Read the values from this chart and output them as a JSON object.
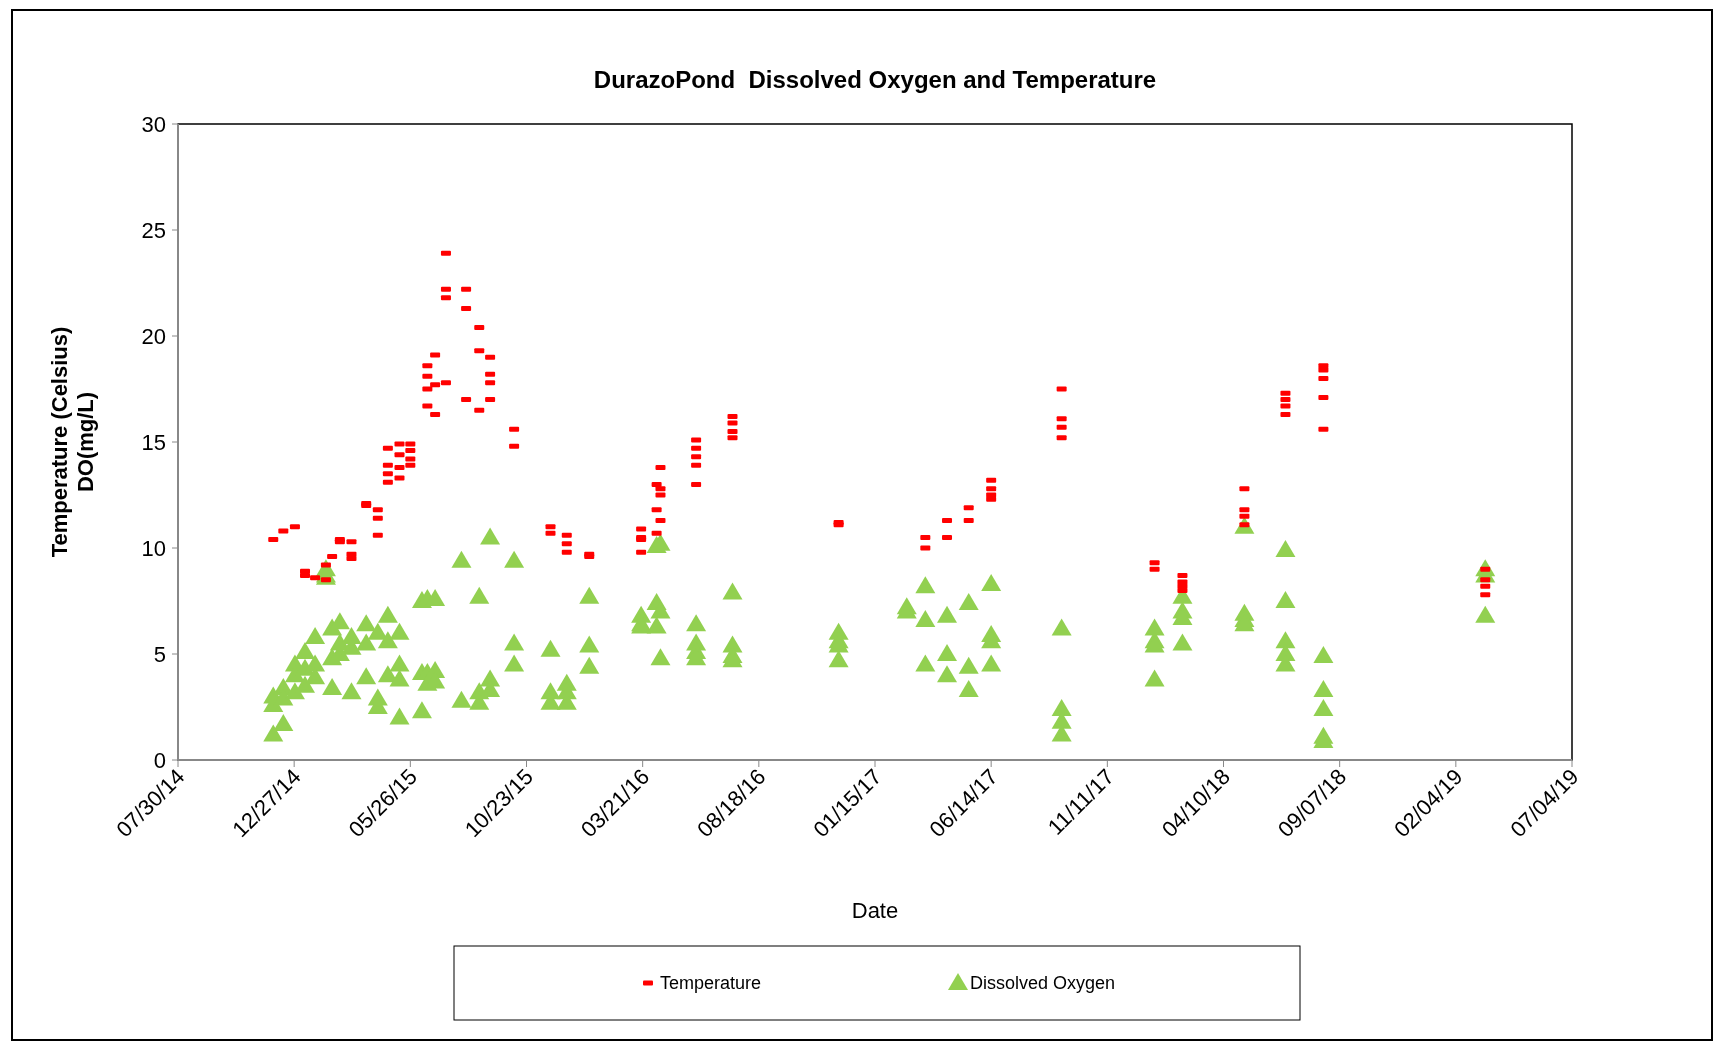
{
  "chart_data": {
    "type": "scatter",
    "title": "DurazoPond  Dissolved Oxygen and Temperature",
    "xlabel": "Date",
    "ylabel": "Temperature (Celsius)\nDO(mg/L)",
    "xlim": [
      "2014-07-30",
      "2019-07-04"
    ],
    "xticks": [
      {
        "value": "2014-07-30",
        "label": "07/30/14"
      },
      {
        "value": "2014-12-27",
        "label": "12/27/14"
      },
      {
        "value": "2015-05-26",
        "label": "05/26/15"
      },
      {
        "value": "2015-10-23",
        "label": "10/23/15"
      },
      {
        "value": "2016-03-21",
        "label": "03/21/16"
      },
      {
        "value": "2016-08-18",
        "label": "08/18/16"
      },
      {
        "value": "2017-01-15",
        "label": "01/15/17"
      },
      {
        "value": "2017-06-14",
        "label": "06/14/17"
      },
      {
        "value": "2017-11-11",
        "label": "11/11/17"
      },
      {
        "value": "2018-04-10",
        "label": "04/10/18"
      },
      {
        "value": "2018-09-07",
        "label": "09/07/18"
      },
      {
        "value": "2019-02-04",
        "label": "02/04/19"
      },
      {
        "value": "2019-07-04",
        "label": "07/04/19"
      }
    ],
    "ylim": [
      0,
      30
    ],
    "yticks": [
      0,
      5,
      10,
      15,
      20,
      25,
      30
    ],
    "grid": false,
    "legend": "bottom",
    "series": [
      {
        "name": "Temperature",
        "color": "#ff0000",
        "marker": "square",
        "x": [
          "2014-11-30",
          "2014-12-13",
          "2014-12-28",
          "2015-01-10",
          "2015-01-10",
          "2015-01-23",
          "2015-02-06",
          "2015-02-06",
          "2015-02-14",
          "2015-02-24",
          "2015-02-24",
          "2015-03-11",
          "2015-03-11",
          "2015-03-11",
          "2015-03-30",
          "2015-03-30",
          "2015-04-14",
          "2015-04-14",
          "2015-04-14",
          "2015-04-27",
          "2015-04-27",
          "2015-04-27",
          "2015-04-27",
          "2015-05-12",
          "2015-05-12",
          "2015-05-12",
          "2015-05-12",
          "2015-05-26",
          "2015-05-26",
          "2015-05-26",
          "2015-05-26",
          "2015-06-17",
          "2015-06-17",
          "2015-06-17",
          "2015-06-17",
          "2015-06-27",
          "2015-06-27",
          "2015-06-27",
          "2015-07-11",
          "2015-07-11",
          "2015-07-11",
          "2015-07-11",
          "2015-08-06",
          "2015-08-06",
          "2015-08-06",
          "2015-08-23",
          "2015-08-23",
          "2015-08-23",
          "2015-09-06",
          "2015-09-06",
          "2015-09-06",
          "2015-09-06",
          "2015-10-07",
          "2015-10-07",
          "2015-11-23",
          "2015-11-23",
          "2015-12-14",
          "2015-12-14",
          "2015-12-14",
          "2016-01-12",
          "2016-01-12",
          "2016-03-19",
          "2016-03-19",
          "2016-03-19",
          "2016-03-19",
          "2016-04-08",
          "2016-04-08",
          "2016-04-08",
          "2016-04-13",
          "2016-04-13",
          "2016-04-13",
          "2016-04-13",
          "2016-05-29",
          "2016-05-29",
          "2016-05-29",
          "2016-05-29",
          "2016-05-29",
          "2016-07-15",
          "2016-07-15",
          "2016-07-15",
          "2016-07-15",
          "2016-11-29",
          "2016-11-29",
          "2017-03-21",
          "2017-03-21",
          "2017-04-18",
          "2017-04-18",
          "2017-05-16",
          "2017-05-16",
          "2017-06-14",
          "2017-06-14",
          "2017-06-14",
          "2017-06-14",
          "2017-09-13",
          "2017-09-13",
          "2017-09-13",
          "2017-09-13",
          "2018-01-11",
          "2018-01-11",
          "2018-02-16",
          "2018-02-16",
          "2018-02-16",
          "2018-02-16",
          "2018-05-07",
          "2018-05-07",
          "2018-05-07",
          "2018-05-07",
          "2018-06-29",
          "2018-06-29",
          "2018-06-29",
          "2018-06-29",
          "2018-08-17",
          "2018-08-17",
          "2018-08-17",
          "2018-08-17",
          "2018-08-17",
          "2019-03-14",
          "2019-03-14",
          "2019-03-14",
          "2019-03-14"
        ],
        "values": [
          10.4,
          10.8,
          11.0,
          8.9,
          8.7,
          8.6,
          8.5,
          9.2,
          9.6,
          10.4,
          10.3,
          10.3,
          9.7,
          9.5,
          12.1,
          12.0,
          11.8,
          11.4,
          10.6,
          14.7,
          13.9,
          13.5,
          13.1,
          14.9,
          14.4,
          13.8,
          13.3,
          14.9,
          14.6,
          14.2,
          13.9,
          18.6,
          18.1,
          17.5,
          16.7,
          19.1,
          17.7,
          16.3,
          23.9,
          22.2,
          21.8,
          17.8,
          22.2,
          21.3,
          17.0,
          20.4,
          19.3,
          16.5,
          19.0,
          18.2,
          17.8,
          17.0,
          15.6,
          14.8,
          11.0,
          10.7,
          10.6,
          10.2,
          9.8,
          9.7,
          9.6,
          10.9,
          10.5,
          10.4,
          9.8,
          13.0,
          11.8,
          10.7,
          13.8,
          12.8,
          12.5,
          11.3,
          15.1,
          14.7,
          14.3,
          13.9,
          13.0,
          16.2,
          15.9,
          15.5,
          15.2,
          11.2,
          11.1,
          10.5,
          10.0,
          11.3,
          10.5,
          11.9,
          11.3,
          13.2,
          12.8,
          12.5,
          12.3,
          17.5,
          16.1,
          15.7,
          15.2,
          9.3,
          9.0,
          8.7,
          8.4,
          8.2,
          8.0,
          12.8,
          11.8,
          11.5,
          11.1,
          17.3,
          17.0,
          16.7,
          16.3,
          18.6,
          18.4,
          18.0,
          17.1,
          15.6,
          9.0,
          8.5,
          8.2,
          7.8
        ]
      },
      {
        "name": "Dissolved Oxygen",
        "color": "#92d050",
        "marker": "triangle",
        "x": [
          "2014-11-30",
          "2014-11-30",
          "2014-11-30",
          "2014-12-13",
          "2014-12-13",
          "2014-12-13",
          "2014-12-28",
          "2014-12-28",
          "2014-12-28",
          "2015-01-10",
          "2015-01-10",
          "2015-01-10",
          "2015-01-23",
          "2015-01-23",
          "2015-01-23",
          "2015-02-06",
          "2015-02-06",
          "2015-02-06",
          "2015-02-14",
          "2015-02-14",
          "2015-02-14",
          "2015-02-24",
          "2015-02-24",
          "2015-02-24",
          "2015-03-11",
          "2015-03-11",
          "2015-03-11",
          "2015-03-30",
          "2015-03-30",
          "2015-03-30",
          "2015-04-14",
          "2015-04-14",
          "2015-04-14",
          "2015-04-27",
          "2015-04-27",
          "2015-04-27",
          "2015-05-12",
          "2015-05-12",
          "2015-05-12",
          "2015-05-12",
          "2015-06-10",
          "2015-06-10",
          "2015-06-10",
          "2015-06-17",
          "2015-06-17",
          "2015-06-17",
          "2015-06-27",
          "2015-06-27",
          "2015-06-27",
          "2015-07-31",
          "2015-07-31",
          "2015-08-23",
          "2015-08-23",
          "2015-08-23",
          "2015-09-06",
          "2015-09-06",
          "2015-09-06",
          "2015-10-07",
          "2015-10-07",
          "2015-10-07",
          "2015-11-23",
          "2015-11-23",
          "2015-11-23",
          "2015-12-14",
          "2015-12-14",
          "2015-12-14",
          "2016-01-12",
          "2016-01-12",
          "2016-01-12",
          "2016-03-19",
          "2016-03-19",
          "2016-03-19",
          "2016-04-08",
          "2016-04-08",
          "2016-04-08",
          "2016-04-13",
          "2016-04-13",
          "2016-04-13",
          "2016-05-29",
          "2016-05-29",
          "2016-05-29",
          "2016-05-29",
          "2016-07-15",
          "2016-07-15",
          "2016-07-15",
          "2016-07-15",
          "2016-11-29",
          "2016-11-29",
          "2016-11-29",
          "2016-11-29",
          "2017-02-25",
          "2017-02-25",
          "2017-03-21",
          "2017-03-21",
          "2017-03-21",
          "2017-04-18",
          "2017-04-18",
          "2017-04-18",
          "2017-05-16",
          "2017-05-16",
          "2017-05-16",
          "2017-06-14",
          "2017-06-14",
          "2017-06-14",
          "2017-06-14",
          "2017-09-13",
          "2017-09-13",
          "2017-09-13",
          "2017-09-13",
          "2018-01-11",
          "2018-01-11",
          "2018-01-11",
          "2018-01-11",
          "2018-02-16",
          "2018-02-16",
          "2018-02-16",
          "2018-02-16",
          "2018-05-07",
          "2018-05-07",
          "2018-05-07",
          "2018-05-07",
          "2018-06-29",
          "2018-06-29",
          "2018-06-29",
          "2018-06-29",
          "2018-06-29",
          "2018-08-17",
          "2018-08-17",
          "2018-08-17",
          "2018-08-17",
          "2018-08-17",
          "2019-03-14",
          "2019-03-14",
          "2019-03-14"
        ],
        "values": [
          2.6,
          3.0,
          1.2,
          3.4,
          1.7,
          2.9,
          3.2,
          4.5,
          4.0,
          5.1,
          3.5,
          4.3,
          5.8,
          4.5,
          3.9,
          9.0,
          8.7,
          8.6,
          4.8,
          3.4,
          6.2,
          5.0,
          6.5,
          5.5,
          3.2,
          5.3,
          5.8,
          5.5,
          6.4,
          3.9,
          2.5,
          2.9,
          6.0,
          5.6,
          6.8,
          4.0,
          3.8,
          6.0,
          2.0,
          4.5,
          2.3,
          7.5,
          4.1,
          7.6,
          4.1,
          3.6,
          7.6,
          4.2,
          3.7,
          9.4,
          2.8,
          7.7,
          2.7,
          3.2,
          10.5,
          3.8,
          3.3,
          9.4,
          5.5,
          4.5,
          5.2,
          3.2,
          2.7,
          3.6,
          3.2,
          2.7,
          7.7,
          5.4,
          4.4,
          6.8,
          6.4,
          6.3,
          7.4,
          6.3,
          10.1,
          7.0,
          10.2,
          4.8,
          6.4,
          5.5,
          5.1,
          4.8,
          7.9,
          5.4,
          4.9,
          4.7,
          6.0,
          5.6,
          5.4,
          4.7,
          7.2,
          7.0,
          8.2,
          6.6,
          4.5,
          6.8,
          5.0,
          4.0,
          7.4,
          4.4,
          3.3,
          8.3,
          5.9,
          5.6,
          4.5,
          6.2,
          2.4,
          1.8,
          1.2,
          6.2,
          5.6,
          5.4,
          3.8,
          7.7,
          7.0,
          6.7,
          5.5,
          11.0,
          6.9,
          6.6,
          6.4,
          9.9,
          7.5,
          5.6,
          5.0,
          4.5,
          4.9,
          3.3,
          2.4,
          1.1,
          0.9,
          9.0,
          8.7,
          6.8
        ]
      }
    ]
  }
}
